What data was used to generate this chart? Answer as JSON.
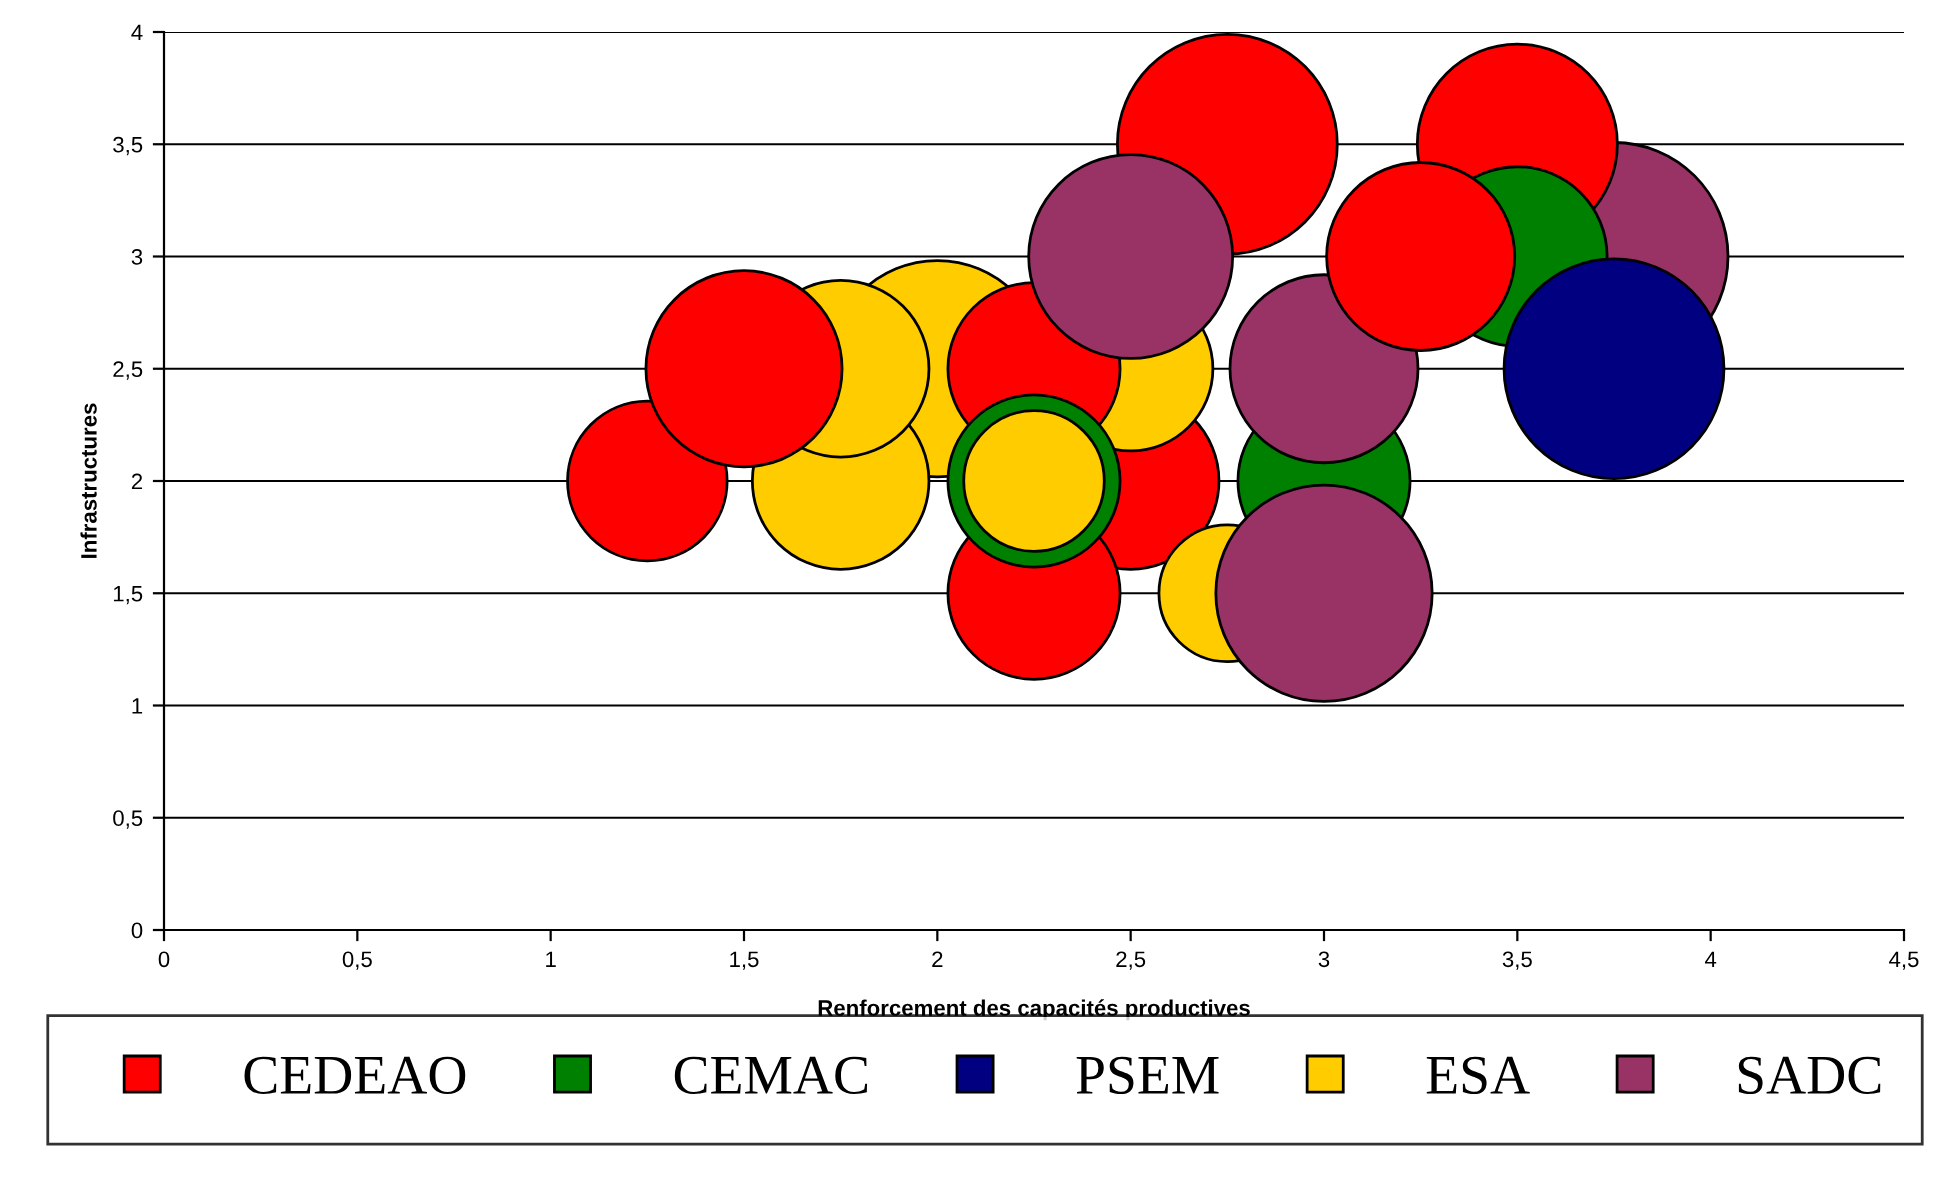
{
  "chart_data": {
    "type": "bubble",
    "xlabel": "Renforcement des capacités productives",
    "ylabel": "Infrastructures",
    "xlim": [
      0,
      4.5
    ],
    "ylim": [
      0,
      4
    ],
    "xticks": [
      0,
      {
        "value": 0.5,
        "label": "0,5"
      },
      1,
      {
        "value": 1.5,
        "label": "1,5"
      },
      2,
      {
        "value": 2.5,
        "label": "2,5"
      },
      3,
      {
        "value": 3.5,
        "label": "3,5"
      },
      4,
      {
        "value": 4.5,
        "label": "4,5"
      }
    ],
    "yticks": [
      0,
      {
        "value": 0.5,
        "label": "0,5"
      },
      1,
      {
        "value": 1.5,
        "label": "1,5"
      },
      2,
      {
        "value": 2.5,
        "label": "2,5"
      },
      3,
      {
        "value": 3.5,
        "label": "3,5"
      },
      4
    ],
    "grid": "y",
    "legend": "bottom",
    "marker": "circle",
    "series": [
      {
        "name": "CEDEAO",
        "color": "#ff0000",
        "x": [
          2.75,
          2.5,
          2.25,
          3.5,
          1.25,
          1.5,
          2.25,
          3.25
        ],
        "values": [
          3.5,
          2.0,
          1.5,
          3.5,
          2.0,
          2.5,
          2.5,
          3.0
        ],
        "sizes": [
          0.93,
          0.6,
          0.57,
          0.77,
          0.49,
          0.74,
          0.57,
          0.68
        ]
      },
      {
        "name": "CEMAC",
        "color": "#008000",
        "x": [
          3.0,
          3.5,
          2.25
        ],
        "values": [
          2.0,
          3.0,
          2.0
        ],
        "sizes": [
          0.57,
          0.62,
          0.57
        ]
      },
      {
        "name": "PSEM",
        "color": "#000080",
        "x": [
          3.75
        ],
        "values": [
          2.5
        ],
        "sizes": [
          0.93
        ]
      },
      {
        "name": "ESA",
        "color": "#ffcc00",
        "x": [
          2.0,
          1.75,
          1.75,
          2.75,
          2.5,
          2.25
        ],
        "values": [
          2.5,
          2.0,
          2.5,
          1.5,
          2.5,
          2.0
        ],
        "sizes": [
          0.9,
          0.6,
          0.6,
          0.36,
          0.52,
          0.38
        ]
      },
      {
        "name": "SADC",
        "color": "#993366",
        "x": [
          3.75,
          3.0,
          3.0,
          2.5
        ],
        "values": [
          3.0,
          2.5,
          1.5,
          3.0
        ],
        "sizes": [
          1,
          0.68,
          0.9,
          0.8
        ]
      }
    ]
  }
}
